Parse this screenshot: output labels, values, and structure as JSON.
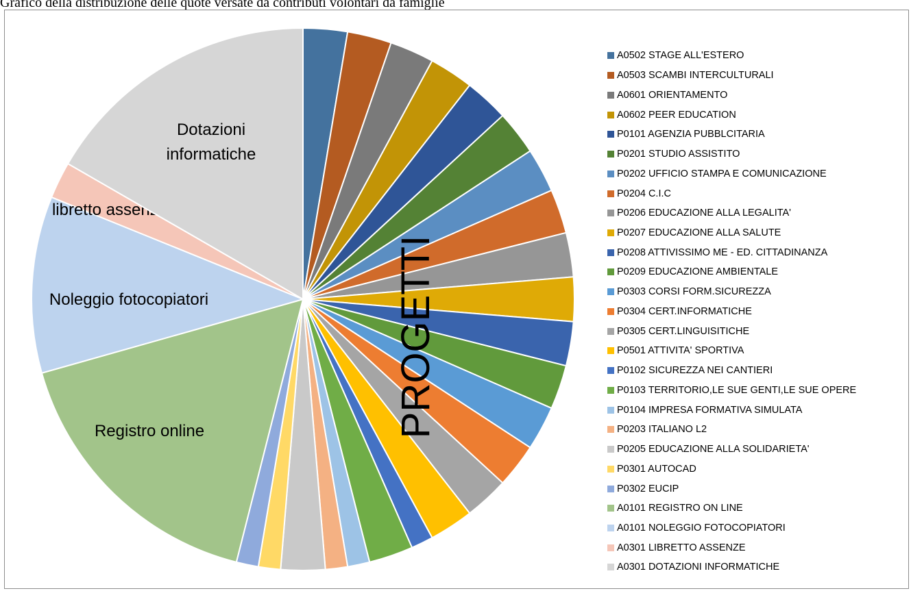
{
  "caption": "Grafico della distribuzione delle quote versate da contributi volontari da famiglie",
  "chart_data": {
    "type": "pie",
    "title": "",
    "overlay_label": "PROGETTI",
    "legend_position": "right",
    "slices": [
      {
        "label": "A0502 STAGE ALL'ESTERO",
        "value": 3.0,
        "color": "#44729e"
      },
      {
        "label": "A0503 SCAMBI INTERCULTURALI",
        "value": 3.0,
        "color": "#b45b21"
      },
      {
        "label": "A0601 ORIENTAMENTO",
        "value": 3.0,
        "color": "#7a7a7a"
      },
      {
        "label": "A0602 PEER EDUCATION",
        "value": 3.0,
        "color": "#c29406"
      },
      {
        "label": "P0101 AGENZIA PUBBLCITARIA",
        "value": 3.0,
        "color": "#2f5597"
      },
      {
        "label": "P0201 STUDIO ASSISTITO",
        "value": 3.0,
        "color": "#548235"
      },
      {
        "label": "P0202 UFFICIO STAMPA E COMUNICAZIONE",
        "value": 3.0,
        "color": "#5b8ec2"
      },
      {
        "label": "P0204 C.I.C",
        "value": 3.0,
        "color": "#d06b2b"
      },
      {
        "label": "P0206 EDUCAZIONE ALLA LEGALITA'",
        "value": 3.0,
        "color": "#969696"
      },
      {
        "label": "P0207 EDUCAZIONE ALLA SALUTE",
        "value": 3.0,
        "color": "#dfaa06"
      },
      {
        "label": "P0208 ATTIVISSIMO ME - ED. CITTADINANZA",
        "value": 3.0,
        "color": "#3a64ad"
      },
      {
        "label": "P0209 EDUCAZIONE AMBIENTALE",
        "value": 3.0,
        "color": "#619a3c"
      },
      {
        "label": "P0303 CORSI FORM.SICUREZZA",
        "value": 3.0,
        "color": "#5a9bd5"
      },
      {
        "label": "P0304 CERT.INFORMATICHE",
        "value": 3.0,
        "color": "#ed7d31"
      },
      {
        "label": "P0305 CERT.LINGUISITICHE",
        "value": 3.0,
        "color": "#a5a5a5"
      },
      {
        "label": "P0501 ATTIVITA' SPORTIVA",
        "value": 3.0,
        "color": "#ffc000"
      },
      {
        "label": "P0102 SICUREZZA NEI CANTIERI",
        "value": 1.5,
        "color": "#4472c4"
      },
      {
        "label": "P0103 TERRITORIO,LE SUE GENTI,LE SUE OPERE",
        "value": 3.0,
        "color": "#70ad47"
      },
      {
        "label": "P0104 IMPRESA FORMATIVA SIMULATA",
        "value": 1.5,
        "color": "#9dc3e6"
      },
      {
        "label": "P0203 ITALIANO L2",
        "value": 1.5,
        "color": "#f4b183"
      },
      {
        "label": "P0205 EDUCAZIONE ALLA SOLIDARIETA'",
        "value": 3.0,
        "color": "#c9c9c9"
      },
      {
        "label": "P0301 AUTOCAD",
        "value": 1.5,
        "color": "#ffd966"
      },
      {
        "label": "P0302 EUCIP",
        "value": 1.5,
        "color": "#8faadc"
      },
      {
        "label": "A0101 REGISTRO ON LINE",
        "value": 19.0,
        "color": "#a2c48a",
        "slice_label": "Registro online"
      },
      {
        "label": "A0101 NOLEGGIO FOTOCOPIATORI",
        "value": 12.0,
        "color": "#bdd3ee",
        "slice_label": "Noleggio fotocopiatori"
      },
      {
        "label": "A0301 LIBRETTO ASSENZE",
        "value": 2.5,
        "color": "#f5c6b8",
        "slice_label": "libretto assenze"
      },
      {
        "label": "A0301 DOTAZIONI INFORMATICHE",
        "value": 19.0,
        "color": "#d6d6d6",
        "slice_label": "Dotazioni\ninformatiche"
      }
    ]
  }
}
